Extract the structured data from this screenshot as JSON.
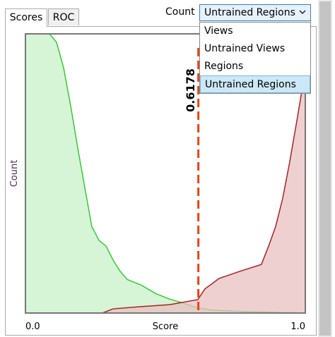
{
  "tabs": [
    "Scores",
    "ROC"
  ],
  "count_label": "Count",
  "dropdown": {
    "selected": "Untrained Regions",
    "options": [
      "Views",
      "Untrained Views",
      "Regions",
      "Untrained Regions"
    ]
  },
  "chart_data": {
    "type": "area",
    "xlabel": "Score",
    "ylabel": "Count",
    "xlim": [
      0,
      1
    ],
    "ylim": [
      0,
      100
    ],
    "xticks": [
      {
        "value": 0,
        "label": "0.0"
      },
      {
        "value": 1,
        "label": "1.0"
      }
    ],
    "threshold": 0.6178,
    "threshold_color": "#ee4411",
    "series": [
      {
        "color": "#33cc33",
        "fill": "#c8f0c8",
        "x": [
          0,
          0.086,
          0.111,
          0.136,
          0.162,
          0.187,
          0.212,
          0.237,
          0.263,
          0.288,
          0.313,
          0.338,
          0.364,
          0.414,
          0.465,
          0.515,
          0.566,
          0.616,
          0.667,
          0.793,
          1.0
        ],
        "values": [
          100,
          100,
          97,
          88,
          74,
          59,
          45,
          31,
          26,
          24,
          19,
          15,
          12,
          10,
          7,
          5,
          3.5,
          1.8,
          1,
          0.5,
          0
        ]
      },
      {
        "color": "#aa2222",
        "fill": "#e8c0c0",
        "x": [
          0.275,
          0.313,
          0.414,
          0.515,
          0.616,
          0.641,
          0.692,
          0.768,
          0.843,
          0.869,
          0.894,
          0.919,
          0.944,
          0.97,
          0.995,
          1.0
        ],
        "values": [
          0,
          1.5,
          2.3,
          3,
          4.8,
          8.6,
          12.4,
          15,
          17.4,
          24,
          31,
          41,
          54,
          69,
          84,
          87
        ]
      }
    ]
  }
}
